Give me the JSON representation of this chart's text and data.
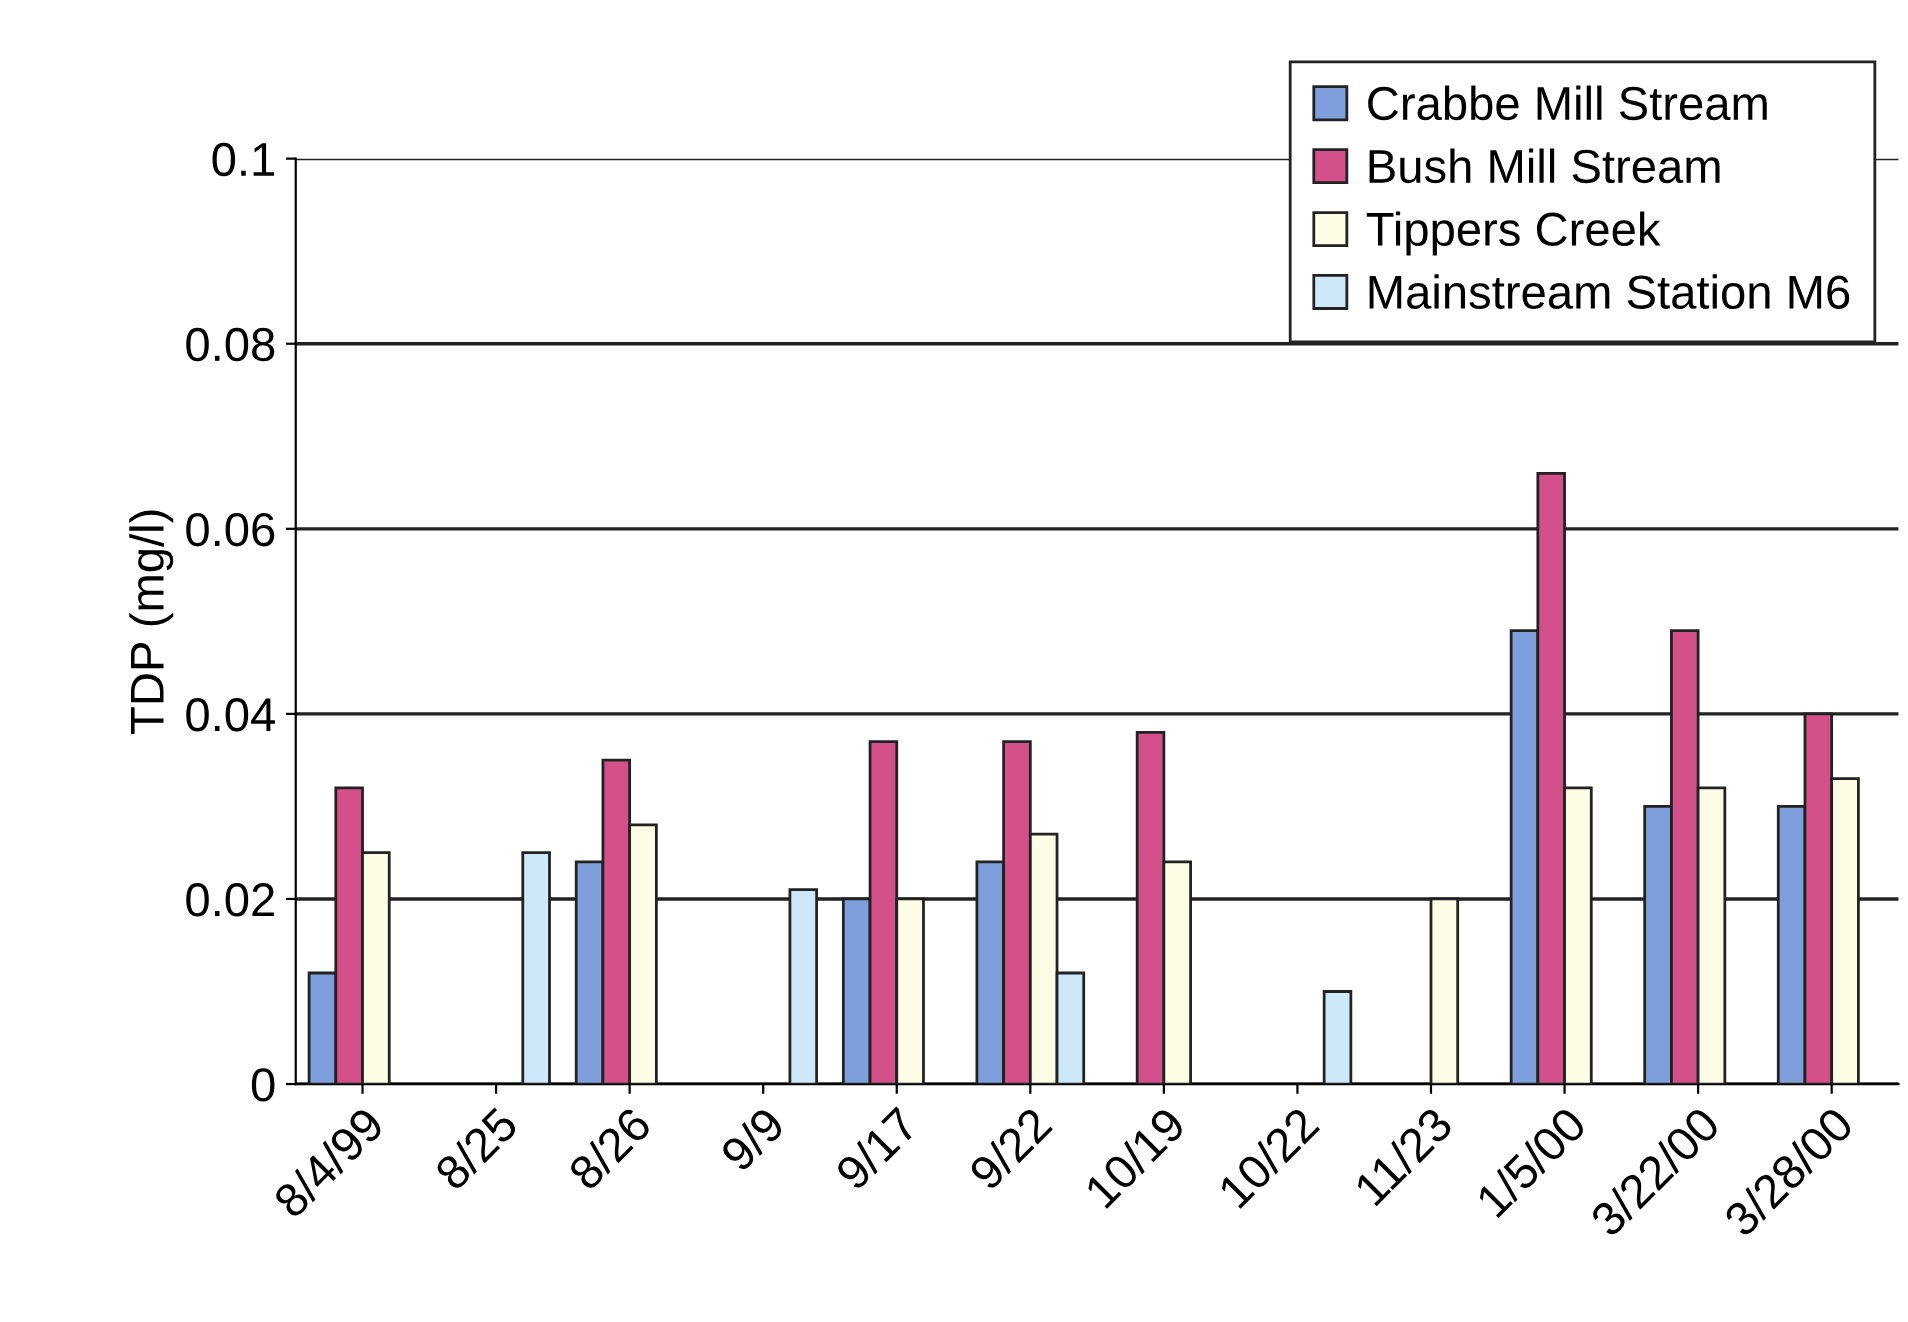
{
  "chart_data": {
    "type": "bar",
    "ylabel": "TDP (mg/l)",
    "categories": [
      "8/4/99",
      "8/25",
      "8/26",
      "9/9",
      "9/17",
      "9/22",
      "10/19",
      "10/22",
      "11/23",
      "1/5/00",
      "3/22/00",
      "3/28/00"
    ],
    "series": [
      {
        "name": "Crabbe Mill Stream",
        "color": "#7f9fdc",
        "values": [
          0.012,
          null,
          0.024,
          null,
          0.02,
          0.024,
          null,
          null,
          null,
          0.049,
          0.03,
          0.03
        ]
      },
      {
        "name": "Bush Mill Stream",
        "color": "#d4508a",
        "values": [
          0.032,
          null,
          0.035,
          null,
          0.037,
          0.037,
          0.038,
          null,
          null,
          0.066,
          0.049,
          0.04
        ]
      },
      {
        "name": "Tippers Creek",
        "color": "#fdfde6",
        "values": [
          0.025,
          null,
          0.028,
          null,
          0.02,
          0.027,
          0.024,
          null,
          0.02,
          0.032,
          0.032,
          0.033
        ]
      },
      {
        "name": "Mainstream Station M6",
        "color": "#cde8f8",
        "values": [
          null,
          0.025,
          null,
          0.021,
          null,
          0.012,
          null,
          0.01,
          null,
          null,
          null,
          null
        ]
      }
    ],
    "ylim": [
      0,
      0.1
    ],
    "yticks": [
      0,
      0.02,
      0.04,
      0.06,
      0.08,
      0.1
    ],
    "grid": "y",
    "legend": "top right"
  }
}
